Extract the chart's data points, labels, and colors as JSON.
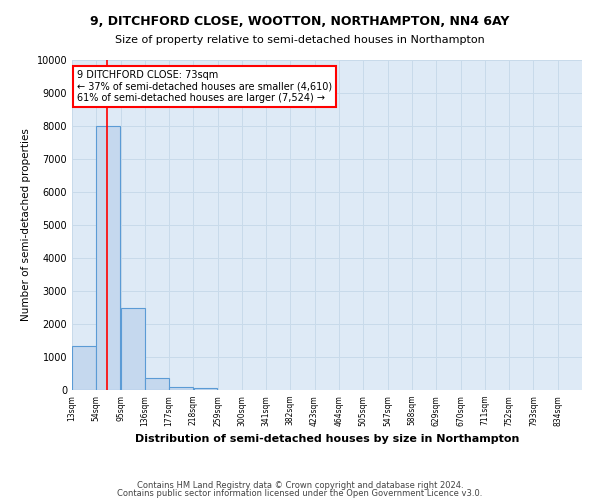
{
  "title": "9, DITCHFORD CLOSE, WOOTTON, NORTHAMPTON, NN4 6AY",
  "subtitle": "Size of property relative to semi-detached houses in Northampton",
  "xlabel": "Distribution of semi-detached houses by size in Northampton",
  "ylabel": "Number of semi-detached properties",
  "footer_line1": "Contains HM Land Registry data © Crown copyright and database right 2024.",
  "footer_line2": "Contains public sector information licensed under the Open Government Licence v3.0.",
  "annotation_title": "9 DITCHFORD CLOSE: 73sqm",
  "annotation_line1": "← 37% of semi-detached houses are smaller (4,610)",
  "annotation_line2": "61% of semi-detached houses are larger (7,524) →",
  "property_size_sqm": 73,
  "bar_left_edges": [
    13,
    54,
    95,
    136,
    177,
    218,
    259,
    300,
    341,
    382,
    423,
    464,
    505,
    547,
    588,
    629,
    670,
    711,
    752,
    793
  ],
  "bar_widths": [
    41,
    41,
    41,
    41,
    41,
    41,
    41,
    41,
    41,
    41,
    41,
    41,
    41,
    41,
    41,
    41,
    41,
    41,
    41,
    41
  ],
  "bar_heights": [
    1320,
    8000,
    2500,
    370,
    105,
    70,
    0,
    0,
    0,
    0,
    0,
    0,
    0,
    0,
    0,
    0,
    0,
    0,
    0,
    0
  ],
  "tick_labels": [
    "13sqm",
    "54sqm",
    "95sqm",
    "136sqm",
    "177sqm",
    "218sqm",
    "259sqm",
    "300sqm",
    "341sqm",
    "382sqm",
    "423sqm",
    "464sqm",
    "505sqm",
    "547sqm",
    "588sqm",
    "629sqm",
    "670sqm",
    "711sqm",
    "752sqm",
    "793sqm",
    "834sqm"
  ],
  "bar_color": "#c5d8ee",
  "bar_edge_color": "#5b9bd5",
  "red_line_x": 73,
  "ylim": [
    0,
    10000
  ],
  "yticks": [
    0,
    1000,
    2000,
    3000,
    4000,
    5000,
    6000,
    7000,
    8000,
    9000,
    10000
  ],
  "annotation_box_color": "#ffffff",
  "annotation_box_edge_color": "#ff0000",
  "grid_color": "#c8daea",
  "bg_color": "#ffffff",
  "plot_bg_color": "#deeaf6",
  "xlim_min": 13,
  "xlim_max": 875
}
